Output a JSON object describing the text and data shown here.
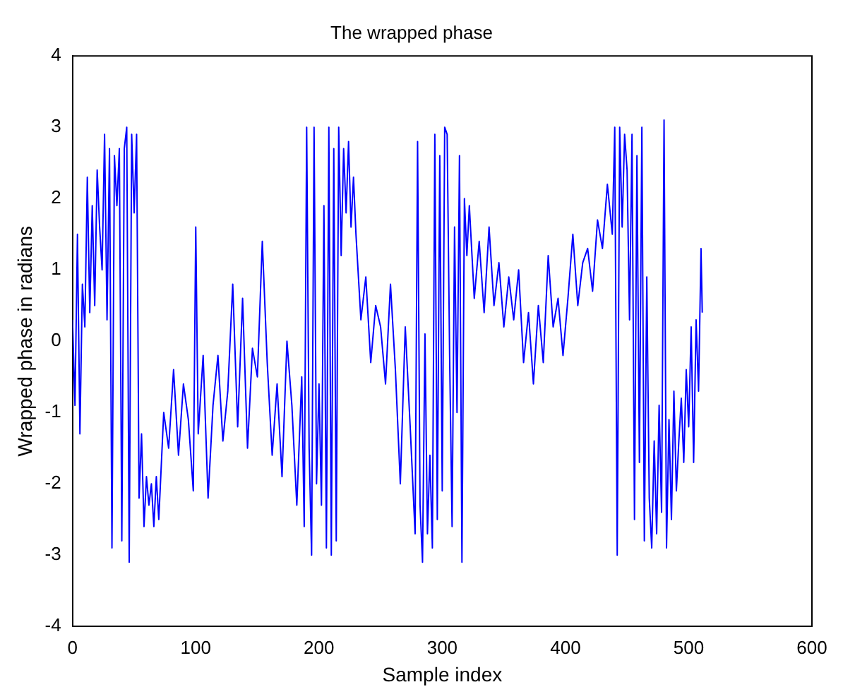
{
  "chart_data": {
    "type": "line",
    "title": "The wrapped phase",
    "xlabel": "Sample index",
    "ylabel": "Wrapped phase in radians",
    "xlim": [
      0,
      600
    ],
    "xticks": [
      0,
      100,
      200,
      300,
      400,
      500,
      600
    ],
    "ylim": [
      -4,
      4
    ],
    "yticks": [
      -4,
      -3,
      -2,
      -1,
      0,
      1,
      2,
      3,
      4
    ],
    "grid": false,
    "legend": false,
    "marker": "none",
    "line_style": "solid",
    "series": [
      {
        "color": "#0000ff",
        "x": [
          0,
          2,
          4,
          6,
          8,
          10,
          12,
          14,
          16,
          18,
          20,
          22,
          24,
          26,
          28,
          30,
          32,
          34,
          36,
          38,
          40,
          42,
          44,
          46,
          48,
          50,
          52,
          54,
          56,
          58,
          60,
          62,
          64,
          66,
          68,
          70,
          74,
          78,
          82,
          86,
          90,
          94,
          98,
          100,
          102,
          106,
          110,
          114,
          118,
          122,
          126,
          130,
          134,
          138,
          142,
          146,
          150,
          154,
          158,
          162,
          166,
          170,
          174,
          178,
          182,
          186,
          188,
          190,
          192,
          194,
          196,
          198,
          200,
          202,
          204,
          206,
          208,
          210,
          212,
          214,
          216,
          218,
          220,
          222,
          224,
          226,
          228,
          230,
          234,
          238,
          242,
          246,
          250,
          254,
          258,
          262,
          266,
          270,
          274,
          278,
          280,
          282,
          284,
          286,
          288,
          290,
          292,
          294,
          296,
          298,
          300,
          302,
          304,
          306,
          308,
          310,
          312,
          314,
          316,
          318,
          320,
          322,
          326,
          330,
          334,
          338,
          342,
          346,
          350,
          354,
          358,
          362,
          366,
          370,
          374,
          378,
          382,
          386,
          390,
          394,
          398,
          402,
          406,
          410,
          414,
          418,
          422,
          426,
          430,
          434,
          438,
          440,
          442,
          444,
          446,
          448,
          450,
          452,
          454,
          456,
          458,
          460,
          462,
          464,
          466,
          468,
          470,
          472,
          474,
          476,
          478,
          480,
          482,
          484,
          486,
          488,
          490,
          492,
          494,
          496,
          498,
          500,
          502,
          504,
          506,
          508,
          510,
          511
        ],
        "values": [
          0.3,
          -0.9,
          1.5,
          -1.3,
          0.8,
          0.2,
          2.3,
          0.4,
          1.9,
          0.5,
          2.4,
          1.6,
          1.0,
          2.9,
          0.3,
          2.7,
          -2.9,
          2.6,
          1.9,
          2.7,
          -2.8,
          2.7,
          3.0,
          -3.1,
          2.9,
          1.8,
          2.9,
          -2.2,
          -1.3,
          -2.6,
          -1.9,
          -2.3,
          -2.0,
          -2.6,
          -1.9,
          -2.5,
          -1.0,
          -1.5,
          -0.4,
          -1.6,
          -0.6,
          -1.1,
          -2.1,
          1.6,
          -1.3,
          -0.2,
          -2.2,
          -0.9,
          -0.2,
          -1.4,
          -0.7,
          0.8,
          -1.2,
          0.6,
          -1.5,
          -0.1,
          -0.5,
          1.4,
          -0.3,
          -1.6,
          -0.6,
          -1.9,
          0.0,
          -0.9,
          -2.3,
          -0.5,
          -2.6,
          3.0,
          -1.5,
          -3.0,
          3.0,
          -2.0,
          -0.6,
          -2.3,
          1.9,
          -2.9,
          3.0,
          -3.0,
          2.7,
          -2.8,
          3.0,
          1.2,
          2.7,
          1.8,
          2.8,
          1.6,
          2.3,
          1.5,
          0.3,
          0.9,
          -0.3,
          0.5,
          0.2,
          -0.6,
          0.8,
          -0.4,
          -2.0,
          0.2,
          -1.2,
          -2.7,
          2.8,
          -2.3,
          -3.1,
          0.1,
          -2.7,
          -1.6,
          -2.9,
          2.9,
          -2.5,
          2.6,
          -2.1,
          3.0,
          2.9,
          -0.2,
          -2.6,
          1.6,
          -1.0,
          2.6,
          -3.1,
          2.0,
          1.2,
          1.9,
          0.6,
          1.4,
          0.4,
          1.6,
          0.5,
          1.1,
          0.2,
          0.9,
          0.3,
          1.0,
          -0.3,
          0.4,
          -0.6,
          0.5,
          -0.3,
          1.2,
          0.2,
          0.6,
          -0.2,
          0.6,
          1.5,
          0.5,
          1.1,
          1.3,
          0.7,
          1.7,
          1.3,
          2.2,
          1.5,
          3.0,
          -3.0,
          3.0,
          1.6,
          2.9,
          2.4,
          0.3,
          2.9,
          -2.5,
          2.6,
          -1.7,
          3.0,
          -2.8,
          0.9,
          -2.2,
          -2.9,
          -1.4,
          -2.7,
          -0.9,
          -2.4,
          3.1,
          -2.9,
          -1.1,
          -2.5,
          -0.7,
          -2.1,
          -1.4,
          -0.8,
          -1.7,
          -0.4,
          -1.2,
          0.2,
          -1.7,
          0.3,
          -0.7,
          1.3,
          0.4
        ]
      }
    ]
  }
}
